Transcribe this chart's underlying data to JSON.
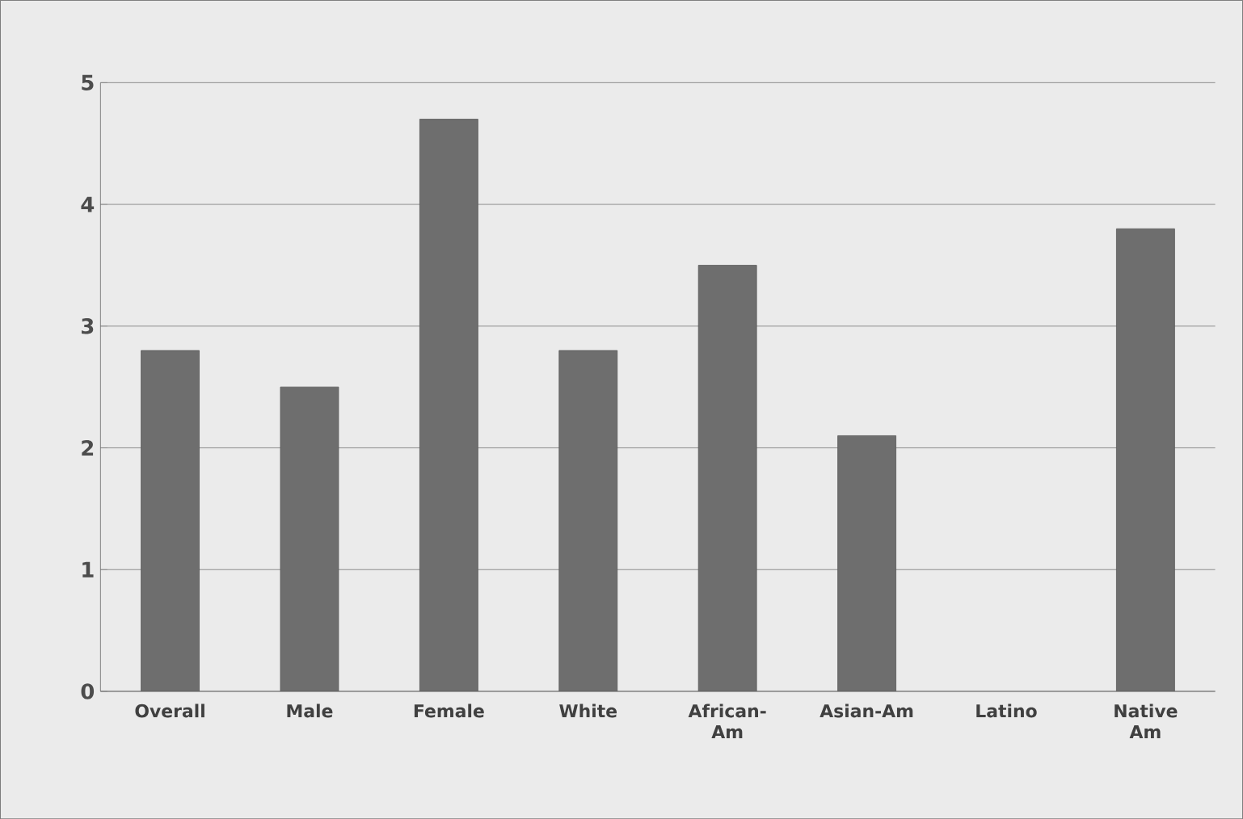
{
  "chart_data": {
    "type": "bar",
    "categories": [
      "Overall",
      "Male",
      "Female",
      "White",
      "African-Am",
      "Asian-Am",
      "Latino",
      "Native Am"
    ],
    "values": [
      2.8,
      2.5,
      4.7,
      2.8,
      3.5,
      2.1,
      null,
      3.8
    ],
    "color": "#6e6e6e",
    "ylim": [
      0,
      5
    ],
    "yticks": [
      0,
      1,
      2,
      3,
      4,
      5
    ],
    "grid": "y"
  }
}
